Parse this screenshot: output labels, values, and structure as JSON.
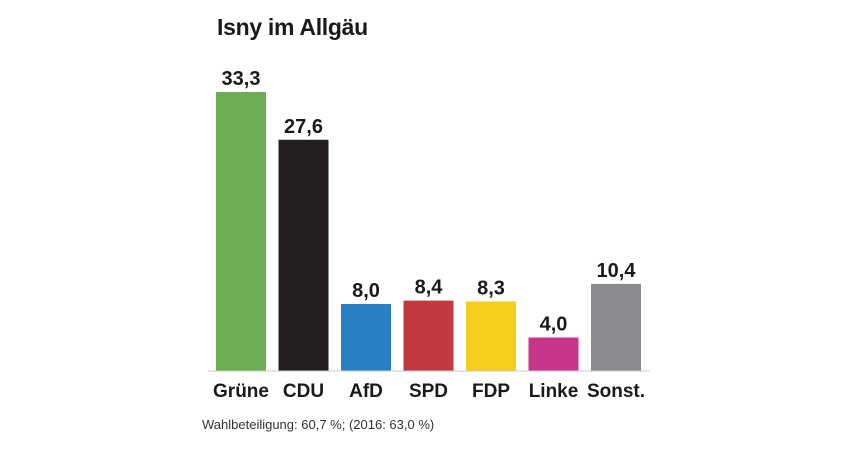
{
  "chart_data": {
    "type": "bar",
    "title": "Isny im Allgäu",
    "categories": [
      "Grüne",
      "CDU",
      "AfD",
      "SPD",
      "FDP",
      "Linke",
      "Sonst."
    ],
    "values": [
      33.3,
      27.6,
      8.0,
      8.4,
      8.3,
      4.0,
      10.4
    ],
    "value_labels": [
      "33,3",
      "27,6",
      "8,0",
      "8,4",
      "8,3",
      "4,0",
      "10,4"
    ],
    "colors": [
      "#6aad52",
      "#231f20",
      "#2a7fc4",
      "#c0393f",
      "#f6cd1d",
      "#c8368c",
      "#8a8b8e"
    ],
    "ylim": [
      0,
      33.3
    ],
    "grid": false,
    "legend": "none"
  },
  "footnote": "Wahlbeteiligung: 60,7 %; (2016: 63,0 %)"
}
